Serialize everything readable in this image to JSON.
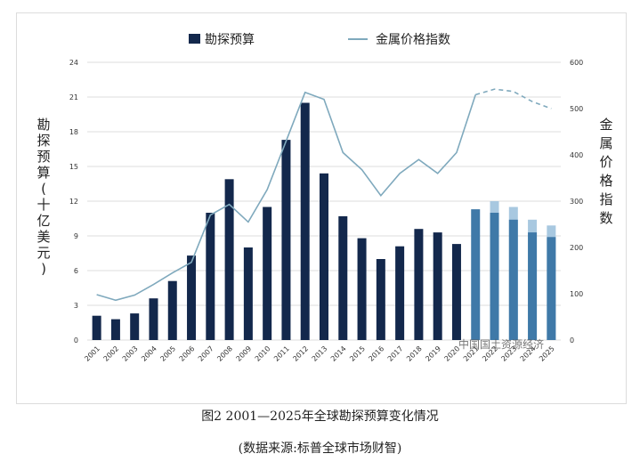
{
  "chart_data": {
    "type": "bar",
    "categories": [
      "2001",
      "2002",
      "2003",
      "2004",
      "2005",
      "2006",
      "2007",
      "2008",
      "2009",
      "2010",
      "2011",
      "2012",
      "2013",
      "2014",
      "2015",
      "2016",
      "2017",
      "2018",
      "2019",
      "2020",
      "2021",
      "2022",
      "2023",
      "2024",
      "2025"
    ],
    "x_tick_labels": [
      "2001",
      "2002",
      "2003",
      "2004",
      "2005",
      "2006",
      "2007",
      "2008",
      "2009",
      "2010",
      "2011",
      "2012",
      "2013",
      "2014",
      "2015",
      "2016",
      "2017",
      "2018",
      "2019",
      "2020",
      "2021",
      "2022",
      "2023",
      "2024",
      "2025"
    ],
    "series": [
      {
        "name": "勘探预算",
        "type": "bar",
        "axis": "left",
        "values": [
          2.1,
          1.8,
          2.3,
          3.6,
          5.1,
          7.3,
          11.0,
          13.9,
          8.0,
          11.5,
          17.3,
          20.5,
          14.4,
          10.7,
          8.8,
          7.0,
          8.1,
          9.6,
          9.3,
          8.3,
          11.3,
          11.0,
          10.4,
          9.3,
          8.9
        ],
        "extension_values": [
          null,
          null,
          null,
          null,
          null,
          null,
          null,
          null,
          null,
          null,
          null,
          null,
          null,
          null,
          null,
          null,
          null,
          null,
          null,
          null,
          null,
          12.0,
          11.5,
          10.4,
          9.9
        ]
      },
      {
        "name": "金属价格指数",
        "type": "line",
        "axis": "right",
        "values": [
          98,
          86,
          97,
          120,
          145,
          168,
          270,
          293,
          255,
          325,
          430,
          535,
          520,
          405,
          368,
          312,
          360,
          390,
          360,
          405,
          530,
          542,
          537,
          515,
          500
        ],
        "dashed_from_index": 20
      }
    ],
    "left_axis": {
      "label": "勘探预算(十亿美元)",
      "range": [
        0,
        24
      ],
      "ticks": [
        "0",
        "3",
        "6",
        "9",
        "12",
        "15",
        "18",
        "21",
        "24"
      ]
    },
    "right_axis": {
      "label": "金属价格指数",
      "range": [
        0,
        600
      ],
      "ticks": [
        "0",
        "100",
        "200",
        "300",
        "400",
        "500",
        "600"
      ]
    },
    "grid": "horizontal",
    "legend_position": "top-center",
    "colors": {
      "bar_dark": "#13284c",
      "bar_forecast": "#3f79a8",
      "bar_forecast_light": "#a8c8e0",
      "line": "#7fa9bd",
      "grid": "#dddddd"
    }
  },
  "legend": {
    "bar_label": "勘探预算",
    "line_label": "金属价格指数"
  },
  "y_left_label_chars": [
    "勘",
    "探",
    "预",
    "算",
    "(",
    "十",
    "亿",
    "美",
    "元",
    ")"
  ],
  "y_right_label_chars": [
    "金",
    "属",
    "价",
    "格",
    "指",
    "数"
  ],
  "caption": "图2  2001—2025年全球勘探预算变化情况",
  "source": "(数据来源:标普全球市场财智)",
  "watermark": "中国国土资源经济"
}
